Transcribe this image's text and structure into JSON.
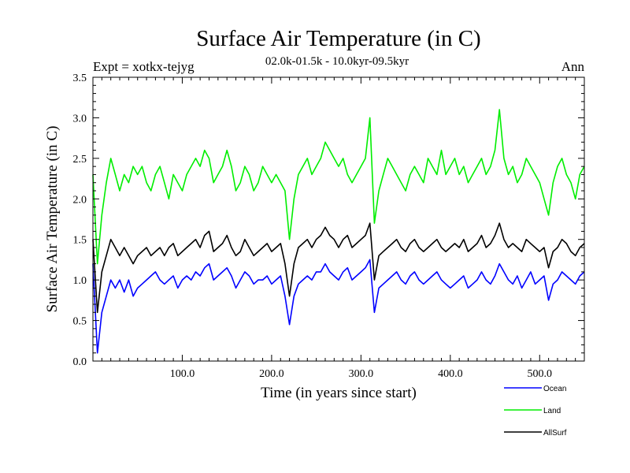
{
  "chart_data": {
    "type": "line",
    "title": "Surface Air Temperature (in C)",
    "subtitle": "02.0k-01.5k - 10.0kyr-09.5kyr",
    "expt_label": "Expt = xotkx-tejyg",
    "period_label": "Ann",
    "xlabel": "Time (in years since start)",
    "ylabel": "Surface Air Temperature (in C)",
    "xlim": [
      0,
      550
    ],
    "ylim": [
      0.0,
      3.5
    ],
    "x_ticks": [
      100,
      200,
      300,
      400,
      500
    ],
    "x_tick_labels": [
      "100.0",
      "200.0",
      "300.0",
      "400.0",
      "500.0"
    ],
    "y_ticks": [
      0.0,
      0.5,
      1.0,
      1.5,
      2.0,
      2.5,
      3.0,
      3.5
    ],
    "y_tick_labels": [
      "0.0",
      "0.5",
      "1.0",
      "1.5",
      "2.0",
      "2.5",
      "3.0",
      "3.5"
    ],
    "legend_position": "bottom-right, below plot",
    "x": [
      0,
      5,
      10,
      15,
      20,
      25,
      30,
      35,
      40,
      45,
      50,
      55,
      60,
      65,
      70,
      75,
      80,
      85,
      90,
      95,
      100,
      105,
      110,
      115,
      120,
      125,
      130,
      135,
      140,
      145,
      150,
      155,
      160,
      165,
      170,
      175,
      180,
      185,
      190,
      195,
      200,
      205,
      210,
      215,
      220,
      225,
      230,
      235,
      240,
      245,
      250,
      255,
      260,
      265,
      270,
      275,
      280,
      285,
      290,
      295,
      300,
      305,
      310,
      315,
      320,
      325,
      330,
      335,
      340,
      345,
      350,
      355,
      360,
      365,
      370,
      375,
      380,
      385,
      390,
      395,
      400,
      405,
      410,
      415,
      420,
      425,
      430,
      435,
      440,
      445,
      450,
      455,
      460,
      465,
      470,
      475,
      480,
      485,
      490,
      495,
      500,
      505,
      510,
      515,
      520,
      525,
      530,
      535,
      540,
      545,
      550
    ],
    "series": [
      {
        "name": "Ocean",
        "color": "#0000ff",
        "values": [
          1.2,
          0.1,
          0.6,
          0.8,
          1.0,
          0.9,
          1.0,
          0.85,
          1.0,
          0.8,
          0.9,
          0.95,
          1.0,
          1.05,
          1.1,
          1.0,
          0.95,
          1.0,
          1.05,
          0.9,
          1.0,
          1.05,
          1.0,
          1.1,
          1.05,
          1.15,
          1.2,
          1.0,
          1.05,
          1.1,
          1.15,
          1.05,
          0.9,
          1.0,
          1.1,
          1.05,
          0.95,
          1.0,
          1.0,
          1.05,
          0.95,
          1.0,
          1.05,
          0.8,
          0.45,
          0.8,
          0.95,
          1.0,
          1.05,
          1.0,
          1.1,
          1.1,
          1.2,
          1.1,
          1.05,
          1.0,
          1.1,
          1.15,
          1.0,
          1.05,
          1.1,
          1.15,
          1.25,
          0.6,
          0.9,
          0.95,
          1.0,
          1.05,
          1.1,
          1.0,
          0.95,
          1.05,
          1.1,
          1.0,
          0.95,
          1.0,
          1.05,
          1.1,
          1.0,
          0.95,
          0.9,
          0.95,
          1.0,
          1.05,
          0.9,
          0.95,
          1.0,
          1.1,
          1.0,
          0.95,
          1.05,
          1.2,
          1.1,
          1.0,
          0.95,
          1.05,
          0.9,
          1.0,
          1.1,
          0.95,
          1.0,
          1.05,
          0.75,
          0.95,
          1.0,
          1.1,
          1.05,
          1.0,
          0.95,
          1.05,
          1.1
        ]
      },
      {
        "name": "Land",
        "color": "#00ee00",
        "values": [
          2.3,
          1.2,
          1.8,
          2.2,
          2.5,
          2.3,
          2.1,
          2.3,
          2.2,
          2.4,
          2.3,
          2.4,
          2.2,
          2.1,
          2.3,
          2.4,
          2.2,
          2.0,
          2.3,
          2.2,
          2.1,
          2.3,
          2.4,
          2.5,
          2.4,
          2.6,
          2.5,
          2.2,
          2.3,
          2.4,
          2.6,
          2.4,
          2.1,
          2.2,
          2.4,
          2.3,
          2.1,
          2.2,
          2.4,
          2.3,
          2.2,
          2.3,
          2.2,
          2.1,
          1.5,
          2.0,
          2.3,
          2.4,
          2.5,
          2.3,
          2.4,
          2.5,
          2.7,
          2.6,
          2.5,
          2.4,
          2.5,
          2.3,
          2.2,
          2.3,
          2.4,
          2.5,
          3.0,
          1.7,
          2.1,
          2.3,
          2.5,
          2.4,
          2.3,
          2.2,
          2.1,
          2.3,
          2.4,
          2.3,
          2.2,
          2.5,
          2.4,
          2.3,
          2.6,
          2.3,
          2.4,
          2.5,
          2.3,
          2.4,
          2.2,
          2.3,
          2.4,
          2.5,
          2.3,
          2.4,
          2.6,
          3.1,
          2.5,
          2.3,
          2.4,
          2.2,
          2.3,
          2.5,
          2.4,
          2.3,
          2.2,
          2.0,
          1.8,
          2.2,
          2.4,
          2.5,
          2.3,
          2.2,
          2.0,
          2.3,
          2.4
        ]
      },
      {
        "name": "AllSurf",
        "color": "#000000",
        "values": [
          1.5,
          0.6,
          1.1,
          1.3,
          1.5,
          1.4,
          1.3,
          1.4,
          1.3,
          1.2,
          1.3,
          1.35,
          1.4,
          1.3,
          1.35,
          1.4,
          1.3,
          1.4,
          1.45,
          1.3,
          1.35,
          1.4,
          1.45,
          1.5,
          1.4,
          1.55,
          1.6,
          1.35,
          1.4,
          1.45,
          1.55,
          1.4,
          1.3,
          1.35,
          1.5,
          1.4,
          1.3,
          1.35,
          1.4,
          1.45,
          1.35,
          1.4,
          1.45,
          1.2,
          0.8,
          1.2,
          1.4,
          1.45,
          1.5,
          1.4,
          1.5,
          1.55,
          1.65,
          1.55,
          1.5,
          1.4,
          1.5,
          1.55,
          1.4,
          1.45,
          1.5,
          1.55,
          1.7,
          1.0,
          1.3,
          1.35,
          1.4,
          1.45,
          1.5,
          1.4,
          1.35,
          1.45,
          1.5,
          1.4,
          1.35,
          1.4,
          1.45,
          1.5,
          1.4,
          1.35,
          1.4,
          1.45,
          1.4,
          1.5,
          1.35,
          1.4,
          1.45,
          1.55,
          1.4,
          1.45,
          1.55,
          1.7,
          1.5,
          1.4,
          1.45,
          1.4,
          1.35,
          1.5,
          1.45,
          1.4,
          1.35,
          1.4,
          1.15,
          1.35,
          1.4,
          1.5,
          1.45,
          1.35,
          1.3,
          1.4,
          1.45
        ]
      }
    ]
  }
}
